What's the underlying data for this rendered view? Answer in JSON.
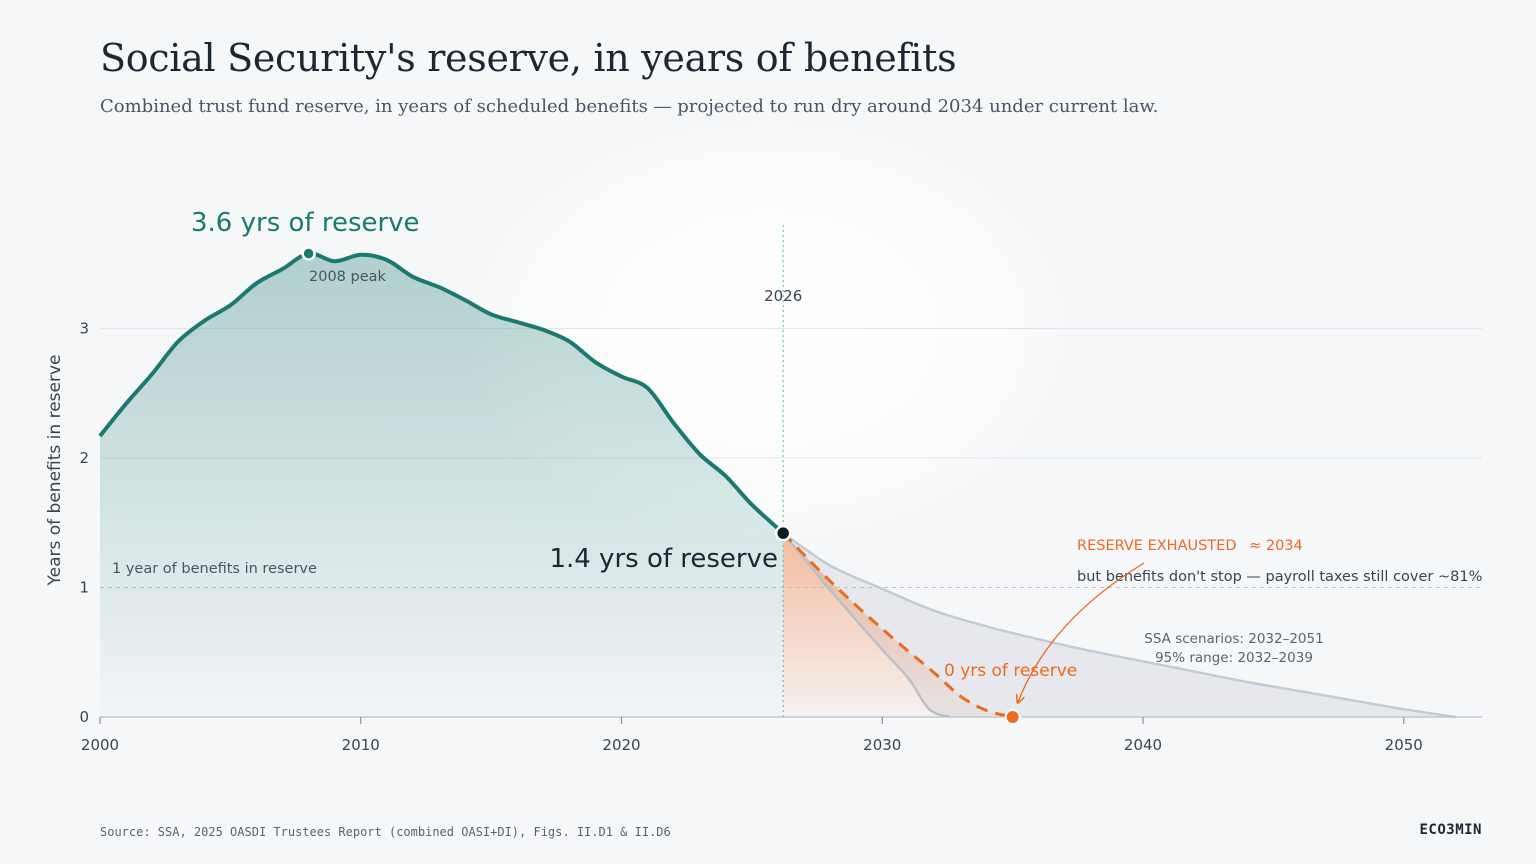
{
  "title": "Social Security's reserve, in years of benefits",
  "subtitle": "Combined trust fund reserve, in years of scheduled benefits — projected to run dry around 2034 under current law.",
  "source": "Source: SSA, 2025 OASDI Trustees Report (combined OASI+DI), Figs. II.D1 & II.D6",
  "brand": "ECO3MIN",
  "colors": {
    "history": "#1a7a70",
    "projection": "#ee6a1e",
    "scenario_band": "#c5cbd4",
    "now_marker": "#7cc4bd"
  },
  "chart_data": {
    "type": "area",
    "xlabel": "",
    "ylabel": "Years of benefits in reserve",
    "xlim": [
      2000,
      2053
    ],
    "ylim": [
      0,
      3.8
    ],
    "x_ticks": [
      2000,
      2010,
      2020,
      2030,
      2040,
      2050
    ],
    "y_ticks": [
      0,
      1,
      2,
      3
    ],
    "grid": "horizontal",
    "series": [
      {
        "name": "",
        "style": "solid",
        "x": [
          2000,
          2001,
          2002,
          2003,
          2004,
          2005,
          2006,
          2007,
          2008,
          2009,
          2010,
          2011,
          2012,
          2013,
          2014,
          2015,
          2016,
          2017,
          2018,
          2019,
          2020,
          2021,
          2022,
          2023,
          2024,
          2025,
          2026.2
        ],
        "y": [
          2.17,
          2.42,
          2.65,
          2.9,
          3.06,
          3.18,
          3.35,
          3.46,
          3.58,
          3.52,
          3.57,
          3.53,
          3.4,
          3.32,
          3.22,
          3.11,
          3.05,
          2.99,
          2.9,
          2.74,
          2.63,
          2.54,
          2.27,
          2.03,
          1.86,
          1.64,
          1.42
        ]
      },
      {
        "name": "",
        "style": "dashed",
        "x": [
          2026.2,
          2028,
          2030,
          2032,
          2033,
          2034,
          2035
        ],
        "y": [
          1.42,
          1.05,
          0.68,
          0.34,
          0.16,
          0.05,
          0.0
        ]
      },
      {
        "name": "SSA scenarios: 2032–2051",
        "style": "band",
        "upper_x": [
          2026.2,
          2028,
          2030,
          2032,
          2034,
          2036,
          2038,
          2040,
          2042,
          2044,
          2046,
          2048,
          2050,
          2052
        ],
        "upper_y": [
          1.42,
          1.17,
          0.99,
          0.82,
          0.7,
          0.6,
          0.51,
          0.43,
          0.35,
          0.27,
          0.2,
          0.13,
          0.06,
          0.0
        ],
        "lower_x": [
          2026.2,
          2028,
          2030,
          2031,
          2031.8,
          2032.6
        ],
        "lower_y": [
          1.42,
          0.98,
          0.52,
          0.3,
          0.06,
          0.0
        ]
      }
    ],
    "reference_lines": [
      {
        "axis": "y",
        "value": 1,
        "label": "1 year of benefits in reserve"
      },
      {
        "axis": "x",
        "value": 2026.2,
        "label": "2026"
      }
    ],
    "annotations": [
      {
        "x": 2008,
        "y": 3.58,
        "label": "3.6 yrs of reserve",
        "note": "2008 peak"
      },
      {
        "x": 2026.2,
        "y": 1.42,
        "label": "1.4 yrs of reserve"
      },
      {
        "x": 2035,
        "y": 0.0,
        "label": "0 yrs of reserve"
      },
      {
        "heading": "RESERVE EXHAUSTED",
        "heading_value": "≈ 2034",
        "text": "but benefits don't stop — payroll taxes still cover ~81%"
      },
      {
        "line1": "SSA scenarios: 2032–2051",
        "line2": "95% range: 2032–2039"
      }
    ]
  }
}
